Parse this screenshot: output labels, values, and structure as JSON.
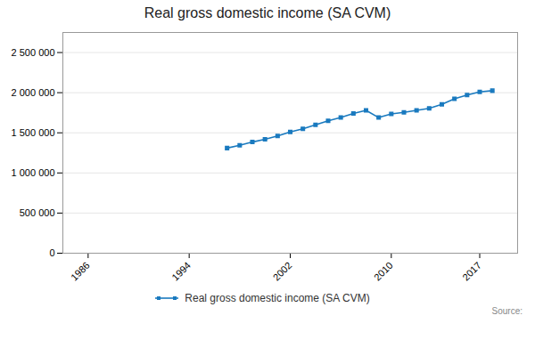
{
  "chart_data": {
    "type": "line",
    "title": "Real gross domestic income (SA CVM)",
    "x": [
      1997,
      1998,
      1999,
      2000,
      2001,
      2002,
      2003,
      2004,
      2005,
      2006,
      2007,
      2008,
      2009,
      2010,
      2011,
      2012,
      2013,
      2014,
      2015,
      2016,
      2017,
      2018
    ],
    "series": [
      {
        "name": "Real gross domestic income (SA CVM)",
        "color": "#1a7abf",
        "marker": "square",
        "values": [
          1310000,
          1345000,
          1385000,
          1420000,
          1460000,
          1510000,
          1550000,
          1600000,
          1650000,
          1690000,
          1740000,
          1780000,
          1690000,
          1735000,
          1755000,
          1780000,
          1805000,
          1855000,
          1925000,
          1970000,
          2010000,
          2025000
        ]
      }
    ],
    "xlim": [
      1984,
      2020
    ],
    "xticks": [
      1986,
      1994,
      2002,
      2010,
      2017
    ],
    "ylim": [
      0,
      2750000
    ],
    "yticks": [
      0,
      {
        "value": 500000,
        "label": "500 000"
      },
      {
        "value": 1000000,
        "label": "1 000 000"
      },
      {
        "value": 1500000,
        "label": "1 500 000"
      },
      {
        "value": 2000000,
        "label": "2 000 000"
      },
      {
        "value": 2500000,
        "label": "2 500 000"
      }
    ],
    "grid": "y",
    "legend": "bottom",
    "annotations": [
      "Source:"
    ]
  }
}
